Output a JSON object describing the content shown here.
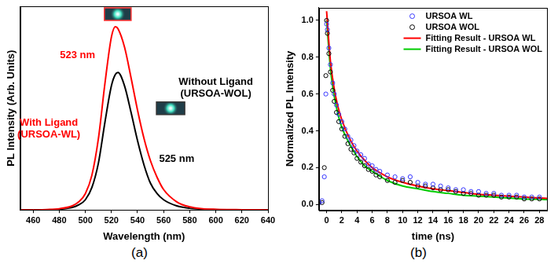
{
  "chart_data": [
    {
      "type": "line",
      "caption": "(a)",
      "x_label": "Wavelength (nm)",
      "y_label": "PL Intensity (Arb. Units)",
      "xlim": [
        450,
        640
      ],
      "xticks": [
        460,
        480,
        500,
        520,
        540,
        560,
        580,
        600,
        620,
        640
      ],
      "ylim": [
        0,
        1
      ],
      "tick_labels": "x",
      "grid": false,
      "x": [
        450,
        460,
        470,
        480,
        490,
        495,
        500,
        505,
        510,
        515,
        520,
        523,
        525,
        530,
        535,
        540,
        545,
        550,
        555,
        560,
        570,
        580,
        590,
        600,
        620,
        640
      ],
      "series": [
        {
          "color": "#ff0000",
          "line_style": "solid",
          "values": [
            0.0,
            0.0,
            0.002,
            0.006,
            0.02,
            0.04,
            0.08,
            0.17,
            0.35,
            0.62,
            0.85,
            0.9,
            0.89,
            0.8,
            0.65,
            0.49,
            0.35,
            0.24,
            0.16,
            0.1,
            0.04,
            0.015,
            0.006,
            0.003,
            0.001,
            0.0
          ]
        },
        {
          "color": "#000000",
          "line_style": "solid",
          "values": [
            0.0,
            0.0,
            0.001,
            0.004,
            0.012,
            0.025,
            0.05,
            0.11,
            0.23,
            0.43,
            0.61,
            0.665,
            0.675,
            0.61,
            0.48,
            0.34,
            0.22,
            0.13,
            0.08,
            0.05,
            0.02,
            0.008,
            0.004,
            0.002,
            0.001,
            0.0
          ]
        }
      ],
      "annotations": [
        {
          "text": "523 nm",
          "x": 494,
          "y": 0.76,
          "color": "#ff0000"
        },
        {
          "text": "With Ligand\n(URSOA-WL)",
          "x": 472,
          "y": 0.4,
          "color": "#ff0000"
        },
        {
          "text": "Without Ligand\n(URSOA-WOL)",
          "x": 600,
          "y": 0.6,
          "color": "#000000"
        },
        {
          "text": "525 nm",
          "x": 570,
          "y": 0.25,
          "color": "#000000"
        }
      ]
    },
    {
      "type": "scatter",
      "caption": "(b)",
      "x_label": "time (ns)",
      "y_label": "Normalized PL Intensity",
      "xlim": [
        -1,
        29
      ],
      "xticks": [
        0,
        2,
        4,
        6,
        8,
        10,
        12,
        14,
        16,
        18,
        20,
        22,
        24,
        26,
        28
      ],
      "ylim": [
        -0.03,
        1.07
      ],
      "yticks": [
        {
          "value": 0,
          "label": "0.0"
        },
        0.2,
        0.4,
        0.6,
        0.8,
        {
          "value": 1,
          "label": "1.0"
        }
      ],
      "grid": false,
      "legend": "upper right",
      "series": [
        {
          "name": "URSOA WL",
          "color": "#3333ff",
          "marker": "circle",
          "x": [
            -1,
            -0.6,
            -0.3,
            -0.1,
            0,
            0.1,
            0.3,
            0.5,
            0.8,
            1.0,
            1.3,
            1.6,
            2.0,
            2.4,
            2.8,
            3.2,
            3.6,
            4.0,
            4.5,
            5,
            5.5,
            6,
            6.5,
            7,
            8,
            9,
            10,
            11,
            12,
            13,
            14,
            15,
            16,
            17,
            18,
            19,
            20,
            21,
            22,
            23,
            24,
            25,
            26,
            27,
            28
          ],
          "values": [
            0.01,
            0.02,
            0.15,
            0.6,
            0.98,
            0.95,
            0.85,
            0.76,
            0.66,
            0.6,
            0.54,
            0.49,
            0.45,
            0.41,
            0.37,
            0.35,
            0.32,
            0.29,
            0.27,
            0.25,
            0.22,
            0.21,
            0.19,
            0.18,
            0.16,
            0.15,
            0.14,
            0.15,
            0.12,
            0.11,
            0.11,
            0.1,
            0.09,
            0.08,
            0.08,
            0.07,
            0.07,
            0.06,
            0.06,
            0.05,
            0.05,
            0.05,
            0.04,
            0.04,
            0.04
          ]
        },
        {
          "name": "URSOA WOL",
          "color": "#000000",
          "marker": "circle",
          "x": [
            -1,
            -0.6,
            -0.3,
            -0.1,
            0,
            0.1,
            0.3,
            0.5,
            0.8,
            1.0,
            1.3,
            1.6,
            2.0,
            2.4,
            2.8,
            3.2,
            3.6,
            4.0,
            4.5,
            5,
            5.5,
            6,
            6.5,
            7,
            8,
            9,
            10,
            11,
            12,
            13,
            14,
            15,
            16,
            17,
            18,
            19,
            20,
            21,
            22,
            23,
            24,
            25,
            26,
            27,
            28
          ],
          "values": [
            0.01,
            0.01,
            0.2,
            0.7,
            1.0,
            0.93,
            0.82,
            0.72,
            0.62,
            0.56,
            0.5,
            0.45,
            0.41,
            0.37,
            0.33,
            0.3,
            0.28,
            0.25,
            0.23,
            0.21,
            0.19,
            0.18,
            0.16,
            0.15,
            0.13,
            0.12,
            0.13,
            0.12,
            0.1,
            0.1,
            0.09,
            0.08,
            0.08,
            0.07,
            0.06,
            0.06,
            0.05,
            0.05,
            0.05,
            0.04,
            0.04,
            0.04,
            0.03,
            0.03,
            0.03
          ]
        },
        {
          "name": "Fitting Result - URSOA WL",
          "color": "#ff0000",
          "type": "line",
          "line_style": "solid",
          "x": [
            0,
            0.5,
            1,
            1.5,
            2,
            3,
            4,
            5,
            6,
            8,
            10,
            12,
            14,
            16,
            18,
            20,
            22,
            24,
            26,
            28,
            29
          ],
          "values": [
            1.05,
            0.78,
            0.63,
            0.53,
            0.46,
            0.36,
            0.29,
            0.24,
            0.2,
            0.15,
            0.12,
            0.1,
            0.085,
            0.075,
            0.065,
            0.055,
            0.05,
            0.045,
            0.04,
            0.035,
            0.033
          ]
        },
        {
          "name": "Fitting Result - URSOA WOL",
          "color": "#00cc00",
          "type": "line",
          "line_style": "solid",
          "x": [
            0,
            0.5,
            1,
            1.5,
            2,
            3,
            4,
            5,
            6,
            8,
            10,
            12,
            14,
            16,
            18,
            20,
            22,
            24,
            26,
            28,
            29
          ],
          "values": [
            1.0,
            0.74,
            0.59,
            0.49,
            0.42,
            0.33,
            0.26,
            0.21,
            0.18,
            0.13,
            0.1,
            0.085,
            0.07,
            0.06,
            0.05,
            0.045,
            0.04,
            0.035,
            0.03,
            0.028,
            0.026
          ]
        }
      ]
    }
  ]
}
